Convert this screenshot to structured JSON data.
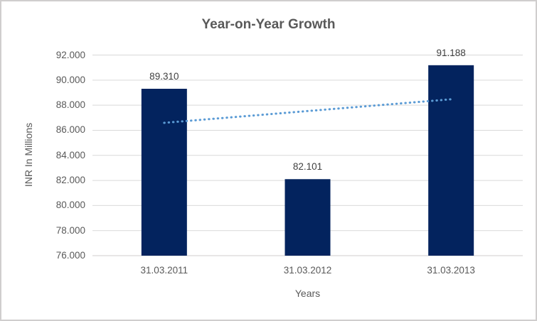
{
  "chart_data": {
    "type": "bar",
    "title": "Year-on-Year Growth",
    "categories": [
      "31.03.2011",
      "31.03.2012",
      "31.03.2013"
    ],
    "values": [
      89.31,
      82.101,
      91.188
    ],
    "data_labels": [
      "89.310",
      "82.101",
      "91.188"
    ],
    "xlabel": "Years",
    "ylabel": "INR In Millions",
    "ylim": [
      76,
      92
    ],
    "ytick_step": 2,
    "ytick_labels": [
      "76.000",
      "78.000",
      "80.000",
      "82.000",
      "84.000",
      "86.000",
      "88.000",
      "90.000",
      "92.000"
    ],
    "grid": true,
    "legend": "none",
    "trendline": {
      "kind": "linear",
      "style": "dotted"
    },
    "colors": {
      "bar": "#03235e",
      "trendline": "#5b9bd5",
      "gridline": "#d9d9d9",
      "axis_line": "#d0cece",
      "axis_text": "#595959",
      "title_text": "#595959",
      "data_label_text": "#404040",
      "border": "#d0cece",
      "background": "#ffffff"
    }
  }
}
